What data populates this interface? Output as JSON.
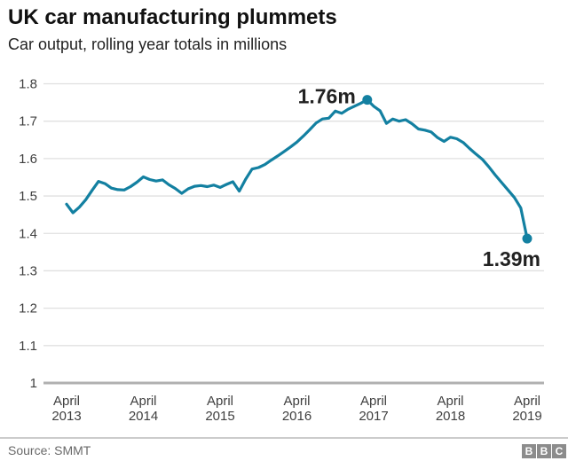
{
  "header": {
    "title": "UK car manufacturing plummets",
    "subtitle": "Car output, rolling year totals in millions"
  },
  "footer": {
    "source": "Source: SMMT",
    "logo_blocks": [
      "B",
      "B",
      "C"
    ]
  },
  "colors": {
    "accent_teal": "#1380A1",
    "grid_line": "#e0e0e0",
    "axis_baseline": "#b0b0b0",
    "title_text": "#111111",
    "subtitle_text": "#222222",
    "tick_text": "#404040",
    "annotation_text": "#222222",
    "source_text": "#696969",
    "logo_gray": "#8c8c8c",
    "divider_gray": "#cccccc"
  },
  "chart_data": {
    "type": "line",
    "title": "UK car manufacturing plummets",
    "subtitle": "Car output, rolling year totals in millions",
    "unit": "millions of cars, rolling year total",
    "frequency": "monthly",
    "x_start": "April 2013",
    "x_end": "April 2019",
    "ylim": [
      1.0,
      1.8
    ],
    "grid": true,
    "legend": "none",
    "y_ticks": [
      {
        "label": "1.8",
        "value": 1.8
      },
      {
        "label": "1.7",
        "value": 1.7
      },
      {
        "label": "1.6",
        "value": 1.6
      },
      {
        "label": "1.5",
        "value": 1.5
      },
      {
        "label": "1.4",
        "value": 1.4
      },
      {
        "label": "1.3",
        "value": 1.3
      },
      {
        "label": "1.2",
        "value": 1.2
      },
      {
        "label": "1.1",
        "value": 1.1
      },
      {
        "label": "1",
        "value": 1.0
      }
    ],
    "x_ticks": [
      {
        "line1": "April",
        "line2": "2013",
        "month_index": 0
      },
      {
        "line1": "April",
        "line2": "2014",
        "month_index": 12
      },
      {
        "line1": "April",
        "line2": "2015",
        "month_index": 24
      },
      {
        "line1": "April",
        "line2": "2016",
        "month_index": 36
      },
      {
        "line1": "April",
        "line2": "2017",
        "month_index": 48
      },
      {
        "line1": "April",
        "line2": "2018",
        "month_index": 60
      },
      {
        "line1": "April",
        "line2": "2019",
        "month_index": 72
      }
    ],
    "values": [
      1.478,
      1.455,
      1.47,
      1.49,
      1.515,
      1.539,
      1.533,
      1.521,
      1.517,
      1.516,
      1.525,
      1.537,
      1.551,
      1.544,
      1.54,
      1.543,
      1.53,
      1.52,
      1.507,
      1.519,
      1.526,
      1.528,
      1.525,
      1.529,
      1.523,
      1.531,
      1.538,
      1.513,
      1.545,
      1.572,
      1.576,
      1.584,
      1.596,
      1.607,
      1.619,
      1.631,
      1.644,
      1.66,
      1.677,
      1.695,
      1.706,
      1.708,
      1.727,
      1.721,
      1.732,
      1.74,
      1.748,
      1.757,
      1.74,
      1.728,
      1.694,
      1.706,
      1.7,
      1.704,
      1.693,
      1.679,
      1.676,
      1.671,
      1.656,
      1.646,
      1.657,
      1.653,
      1.643,
      1.627,
      1.612,
      1.598,
      1.578,
      1.556,
      1.536,
      1.516,
      1.496,
      1.468,
      1.386
    ],
    "annotations": [
      {
        "label": "1.76m",
        "month_index": 47,
        "value": 1.757,
        "placement": "left-of-point"
      },
      {
        "label": "1.39m",
        "month_index": 72,
        "value": 1.386,
        "placement": "below-left-of-point"
      }
    ]
  }
}
